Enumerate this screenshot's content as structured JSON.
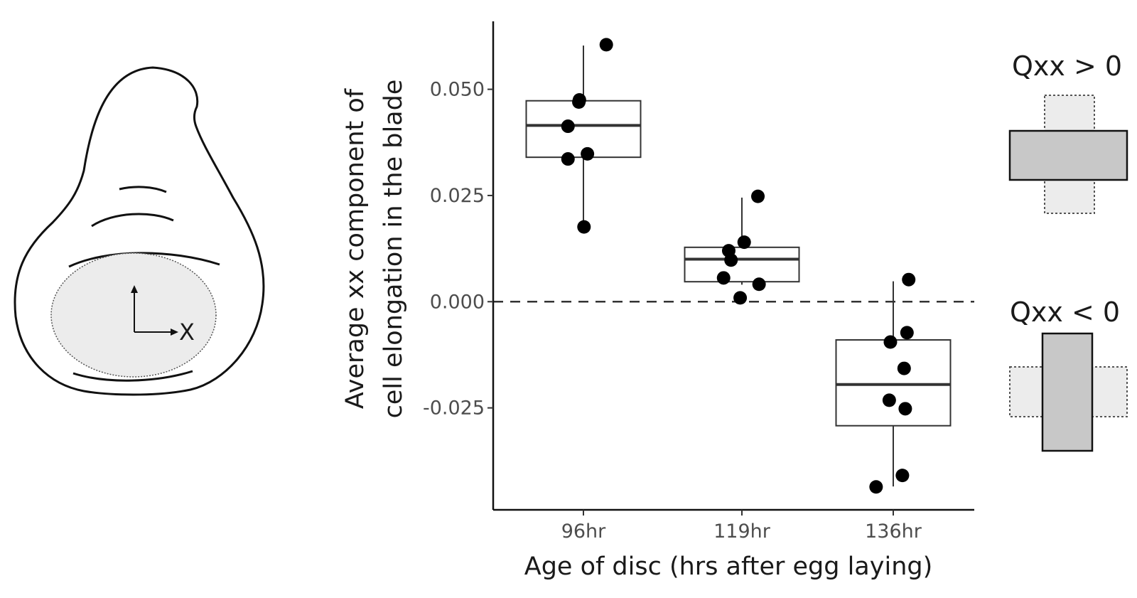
{
  "chart_data": {
    "type": "box",
    "categories": [
      "96hr",
      "119hr",
      "136hr"
    ],
    "xlabel": "Age of disc (hrs after egg laying)",
    "ylabel": [
      "Average xx component of",
      "cell elongation in the blade"
    ],
    "ylim": [
      -0.049,
      0.066
    ],
    "yticks": [
      0.05,
      0.025,
      0.0,
      -0.025
    ],
    "ytick_labels": [
      "0.050",
      "0.025",
      "0.000",
      "-0.025"
    ],
    "reference_line": {
      "y": 0.0,
      "style": "dashed"
    },
    "grid": false,
    "boxes": [
      {
        "category": "96hr",
        "q1": 0.034,
        "median": 0.0415,
        "q3": 0.0473,
        "whisker_low": 0.0175,
        "whisker_high": 0.0603
      },
      {
        "category": "119hr",
        "q1": 0.0047,
        "median": 0.01,
        "q3": 0.0128,
        "whisker_low": 0.004,
        "whisker_high": 0.0245
      },
      {
        "category": "136hr",
        "q1": -0.0292,
        "median": -0.0195,
        "q3": -0.009,
        "whisker_low": -0.0435,
        "whisker_high": 0.0048
      }
    ],
    "points": [
      {
        "category": "96hr",
        "jitter": 0.4,
        "y": 0.0605
      },
      {
        "category": "96hr",
        "jitter": -0.08,
        "y": 0.047
      },
      {
        "category": "96hr",
        "jitter": -0.07,
        "y": 0.0475
      },
      {
        "category": "96hr",
        "jitter": -0.27,
        "y": 0.0413
      },
      {
        "category": "96hr",
        "jitter": 0.07,
        "y": 0.0348
      },
      {
        "category": "96hr",
        "jitter": -0.27,
        "y": 0.0336
      },
      {
        "category": "96hr",
        "jitter": 0.01,
        "y": 0.0176
      },
      {
        "category": "119hr",
        "jitter": 0.28,
        "y": 0.0248
      },
      {
        "category": "119hr",
        "jitter": 0.04,
        "y": 0.014
      },
      {
        "category": "119hr",
        "jitter": -0.23,
        "y": 0.012
      },
      {
        "category": "119hr",
        "jitter": -0.19,
        "y": 0.0098
      },
      {
        "category": "119hr",
        "jitter": -0.32,
        "y": 0.0056
      },
      {
        "category": "119hr",
        "jitter": 0.3,
        "y": 0.0041
      },
      {
        "category": "119hr",
        "jitter": -0.03,
        "y": 0.0009
      },
      {
        "category": "136hr",
        "jitter": 0.27,
        "y": 0.0052
      },
      {
        "category": "136hr",
        "jitter": -0.05,
        "y": -0.0095
      },
      {
        "category": "136hr",
        "jitter": 0.24,
        "y": -0.0073
      },
      {
        "category": "136hr",
        "jitter": 0.19,
        "y": -0.0157
      },
      {
        "category": "136hr",
        "jitter": -0.07,
        "y": -0.0232
      },
      {
        "category": "136hr",
        "jitter": 0.21,
        "y": -0.0252
      },
      {
        "category": "136hr",
        "jitter": 0.16,
        "y": -0.0409
      },
      {
        "category": "136hr",
        "jitter": -0.3,
        "y": -0.0436
      }
    ]
  },
  "illustration": {
    "axis_label": "X"
  },
  "legend": {
    "positive_label": "Qxx > 0",
    "negative_label": "Qxx < 0",
    "fill_color": "#c8c8c8",
    "ghost_color": "#ececec"
  }
}
